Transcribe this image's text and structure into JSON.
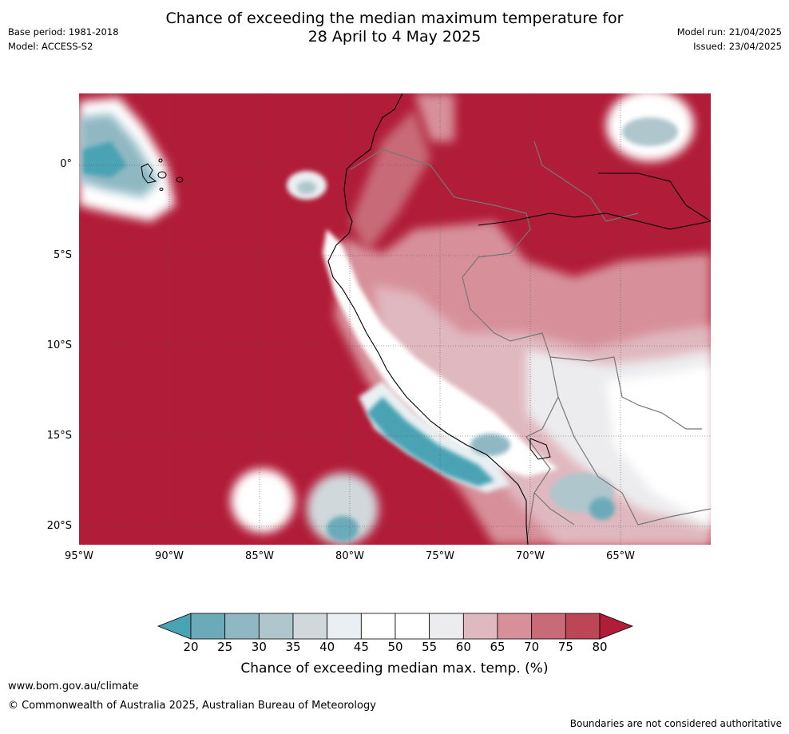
{
  "title_line1": "Chance of exceeding the median maximum temperature for",
  "title_line2": "28 April to 4 May 2025",
  "meta_left": [
    "Base period: 1981-2018",
    "Model: ACCESS-S2"
  ],
  "meta_right": [
    "Model run: 21/04/2025",
    "Issued: 23/04/2025"
  ],
  "lat_labels": [
    "0°",
    "5°S",
    "10°S",
    "15°S",
    "20°S"
  ],
  "lon_labels": [
    "95°W",
    "90°W",
    "85°W",
    "80°W",
    "75°W",
    "70°W",
    "65°W"
  ],
  "colorbar": {
    "ticks": [
      "20",
      "25",
      "30",
      "35",
      "40",
      "45",
      "50",
      "55",
      "60",
      "65",
      "70",
      "75",
      "80"
    ],
    "colors": [
      "#4aa3b3",
      "#6aaab9",
      "#8fb8c3",
      "#aec6cc",
      "#d0d8db",
      "#e9eff2",
      "#ffffff",
      "#ffffff",
      "#ececee",
      "#e0b8bf",
      "#d7909a",
      "#c86a78",
      "#bd4656",
      "#b11c38"
    ],
    "label": "Chance of exceeding median max. temp. (%)"
  },
  "footer": {
    "url": "www.bom.gov.au/climate",
    "copyright": "© Commonwealth of Australia 2025, Australian Bureau of Meteorology",
    "disclaimer": "Boundaries are not considered authoritative"
  }
}
